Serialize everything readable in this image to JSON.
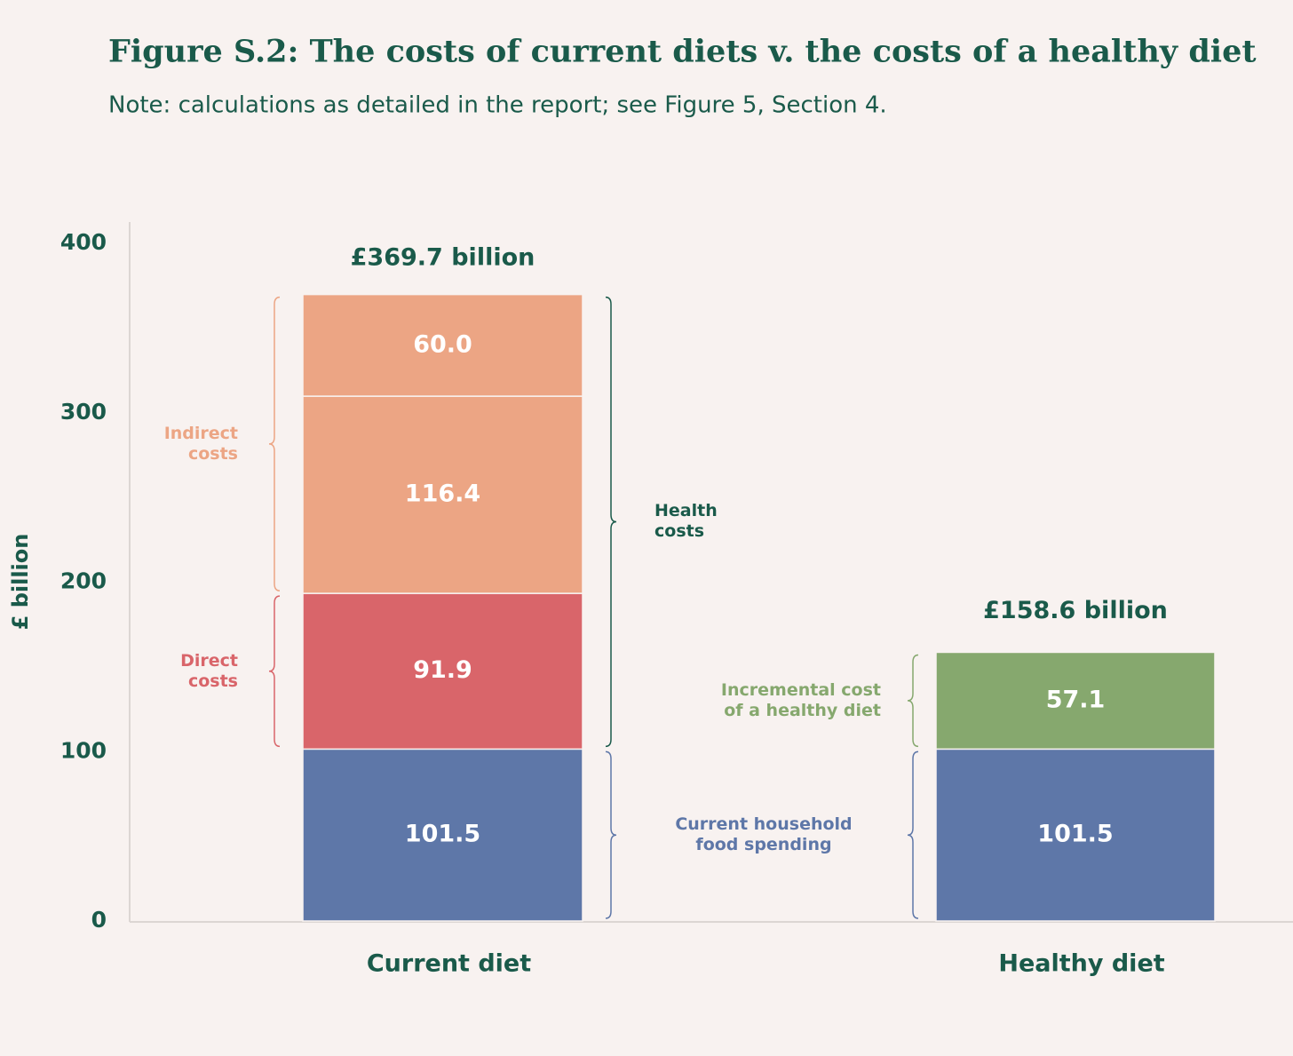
{
  "chart_data": {
    "type": "stacked_bar",
    "title": "Figure S.2: The costs of current diets v. the costs of a healthy diet",
    "subtitle": "Note: calculations as detailed in the report; see Figure 5, Section 4.",
    "y_label": "£ billion",
    "categories": [
      "Current diet",
      "Healthy diet"
    ],
    "series": [
      {
        "name": "Current household food spending",
        "color": "#5e77a8",
        "values": [
          101.5,
          101.5
        ]
      },
      {
        "name": "Direct costs",
        "color": "#d9656a",
        "values": [
          91.9,
          null
        ]
      },
      {
        "name": "Indirect costs",
        "color": "#eca584",
        "values": [
          116.4,
          null
        ]
      },
      {
        "color": "#eca584",
        "values": [
          60.0,
          null
        ],
        "value_labels": [
          "60.0",
          null
        ]
      },
      {
        "name": "Incremental cost of a healthy diet",
        "color": "#86a86e",
        "values": [
          null,
          57.1
        ]
      }
    ],
    "annotation": "Health costs",
    "totals": {
      "values": [
        369.7,
        158.6
      ],
      "value_labels": [
        "£369.7 billion",
        "£158.6 billion"
      ]
    },
    "ylim": [
      0,
      400
    ],
    "yticks": [
      0,
      100,
      200,
      300,
      400
    ],
    "grid": false
  }
}
